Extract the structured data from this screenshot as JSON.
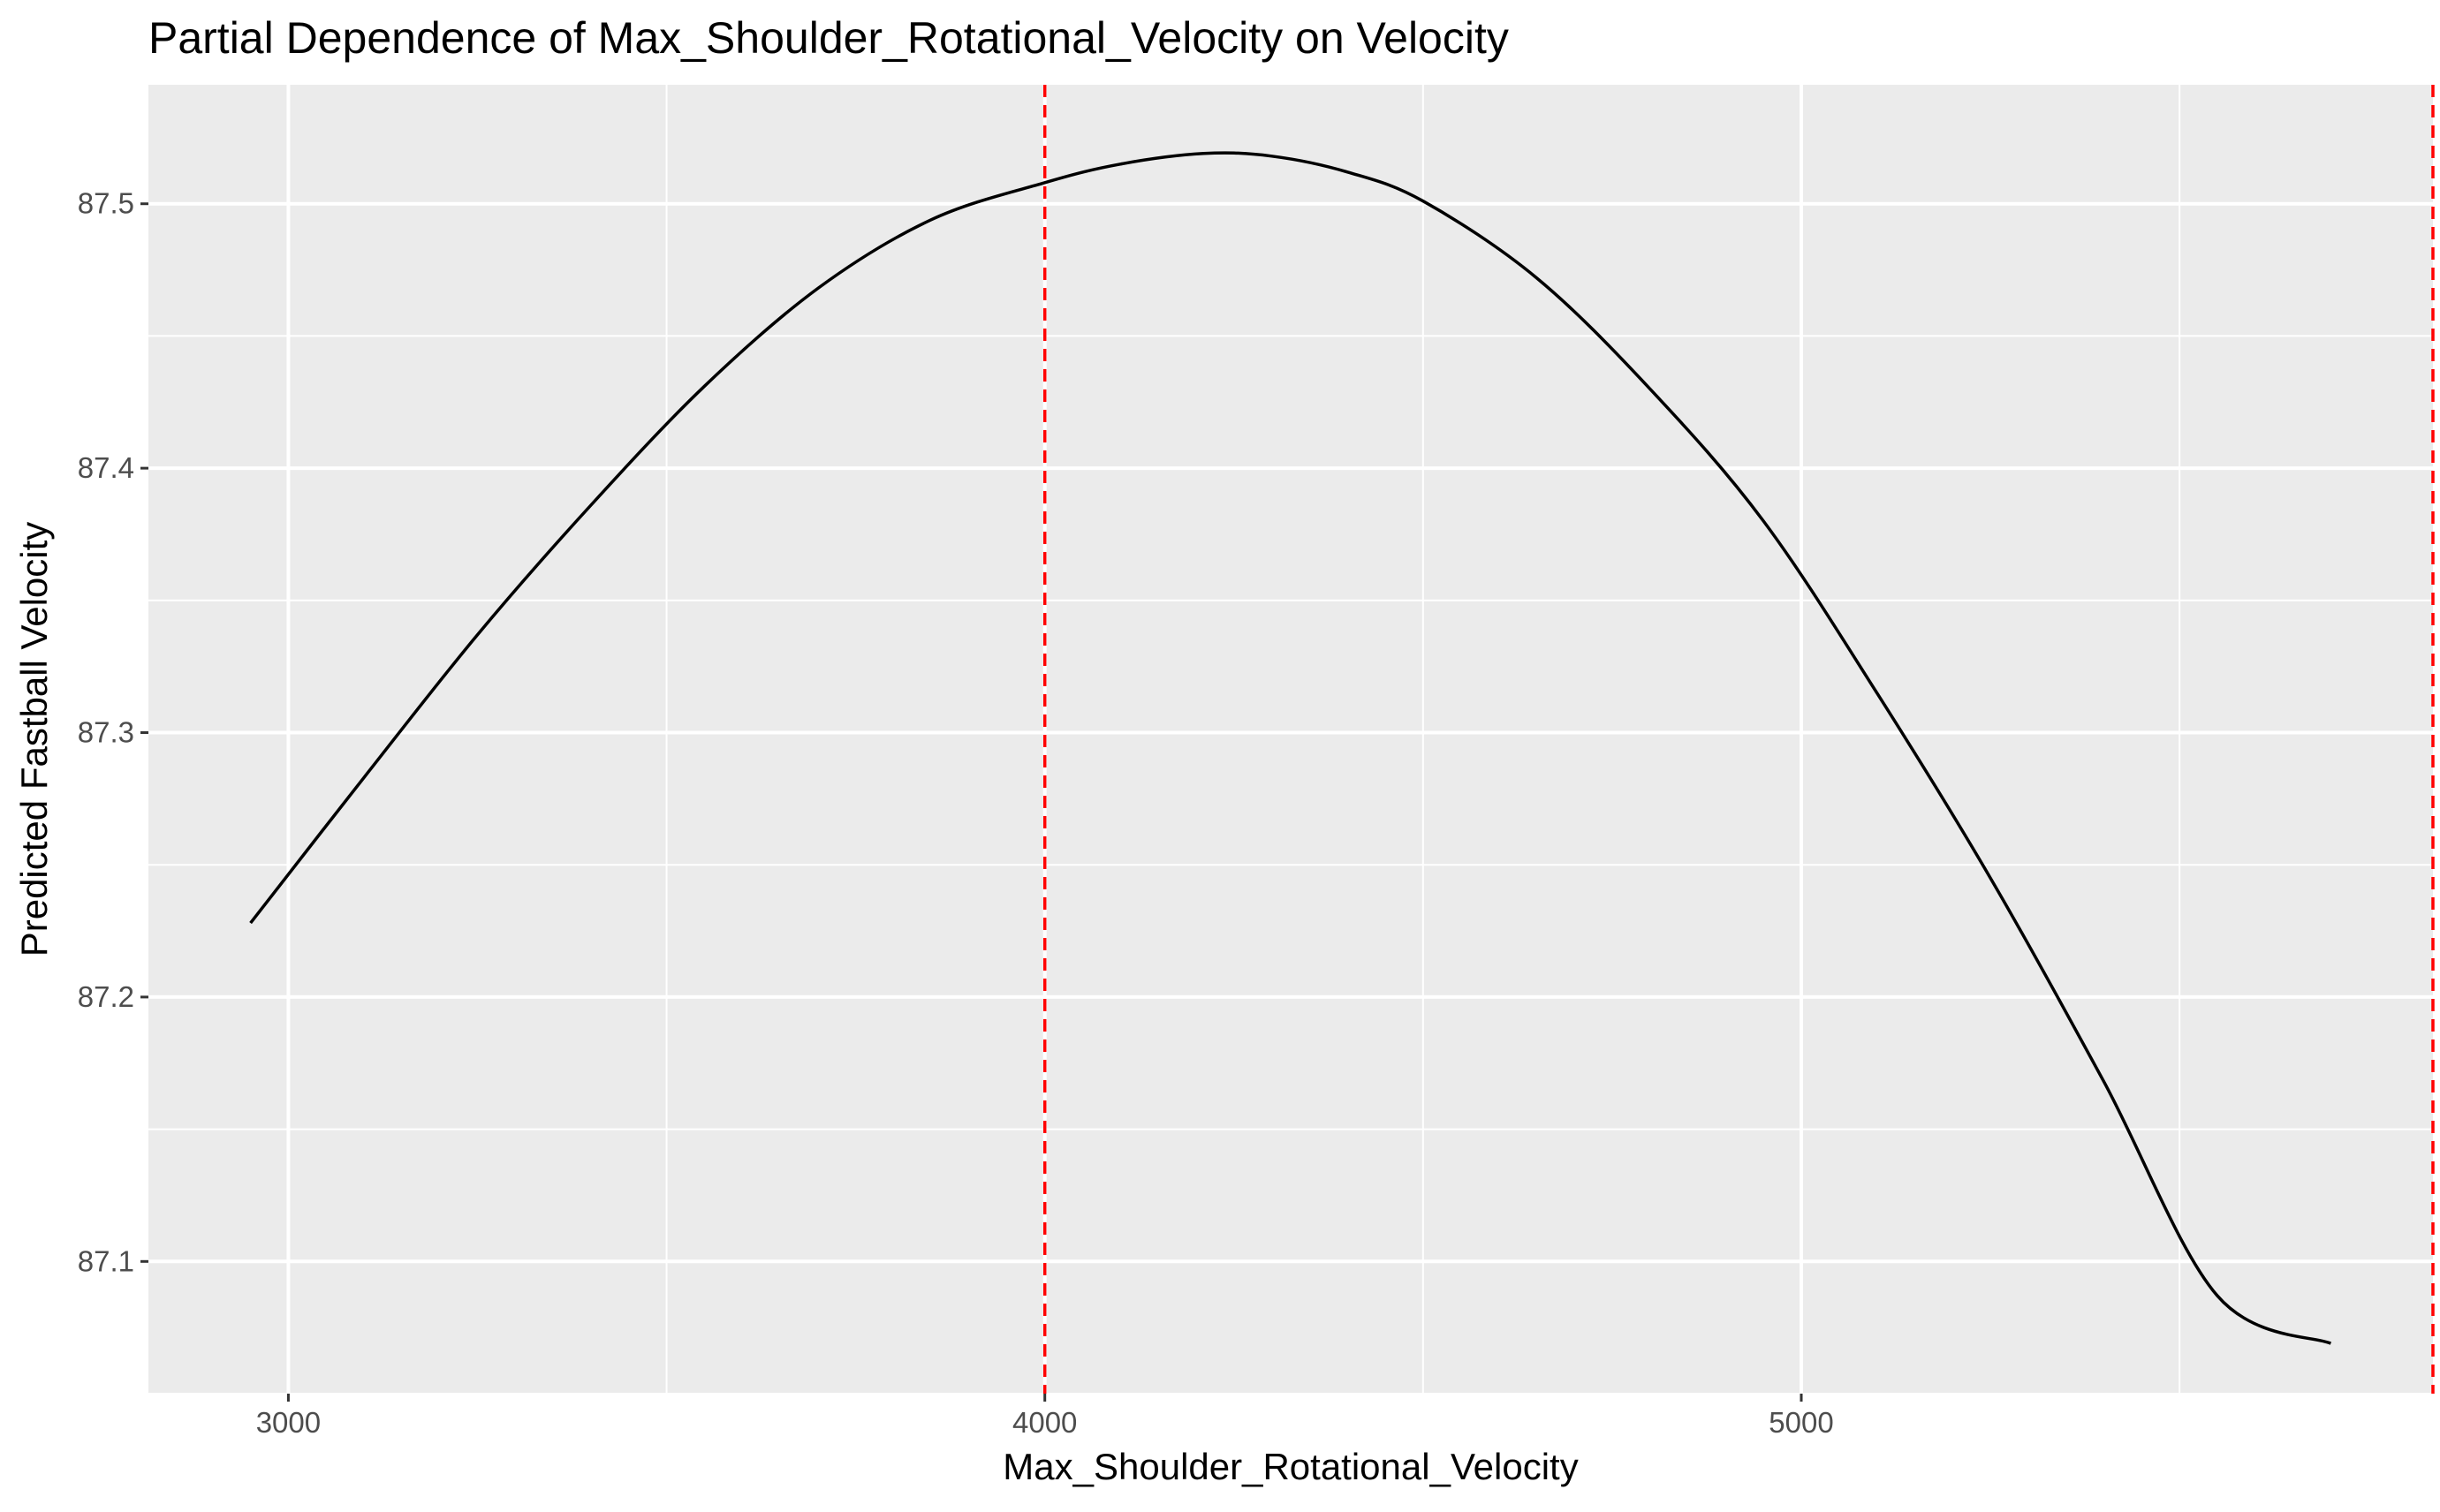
{
  "chart_data": {
    "type": "line",
    "title": "Partial Dependence of Max_Shoulder_Rotational_Velocity on Velocity",
    "xlabel": "Max_Shoulder_Rotational_Velocity",
    "ylabel": "Predicted Fastball Velocity",
    "xlim": [
      2815,
      5835
    ],
    "ylim": [
      87.05,
      87.545
    ],
    "x_ticks": [
      3000,
      4000,
      5000
    ],
    "x_tick_labels": [
      "3000",
      "4000",
      "5000"
    ],
    "y_ticks": [
      87.1,
      87.2,
      87.3,
      87.4,
      87.5
    ],
    "y_tick_labels": [
      "87.1",
      "87.2",
      "87.3",
      "87.4",
      "87.5"
    ],
    "x_minor_gridlines": [
      3500,
      4500,
      5500
    ],
    "y_minor_gridlines": [
      87.05,
      87.15,
      87.25,
      87.35,
      87.45
    ],
    "grid": true,
    "panel_background": "#ebebeb",
    "gridline_color": "#ffffff",
    "series": [
      {
        "color": "#000000",
        "x": [
          2950,
          3100,
          3250,
          3400,
          3550,
          3700,
          3850,
          4000,
          4100,
          4210,
          4300,
          4400,
          4500,
          4650,
          4800,
          4950,
          5100,
          5250,
          5400,
          5550,
          5700
        ],
        "y": [
          87.228,
          87.283,
          87.337,
          87.386,
          87.431,
          87.468,
          87.494,
          87.508,
          87.515,
          87.519,
          87.518,
          87.512,
          87.501,
          87.472,
          87.43,
          87.38,
          87.315,
          87.245,
          87.168,
          87.087,
          87.069
        ]
      }
    ],
    "reference_lines": [
      {
        "orientation": "vertical",
        "x": 4000,
        "color": "#ff0000",
        "style": "dashed"
      },
      {
        "orientation": "vertical",
        "x": 5835,
        "color": "#ff0000",
        "style": "dashed"
      }
    ]
  }
}
